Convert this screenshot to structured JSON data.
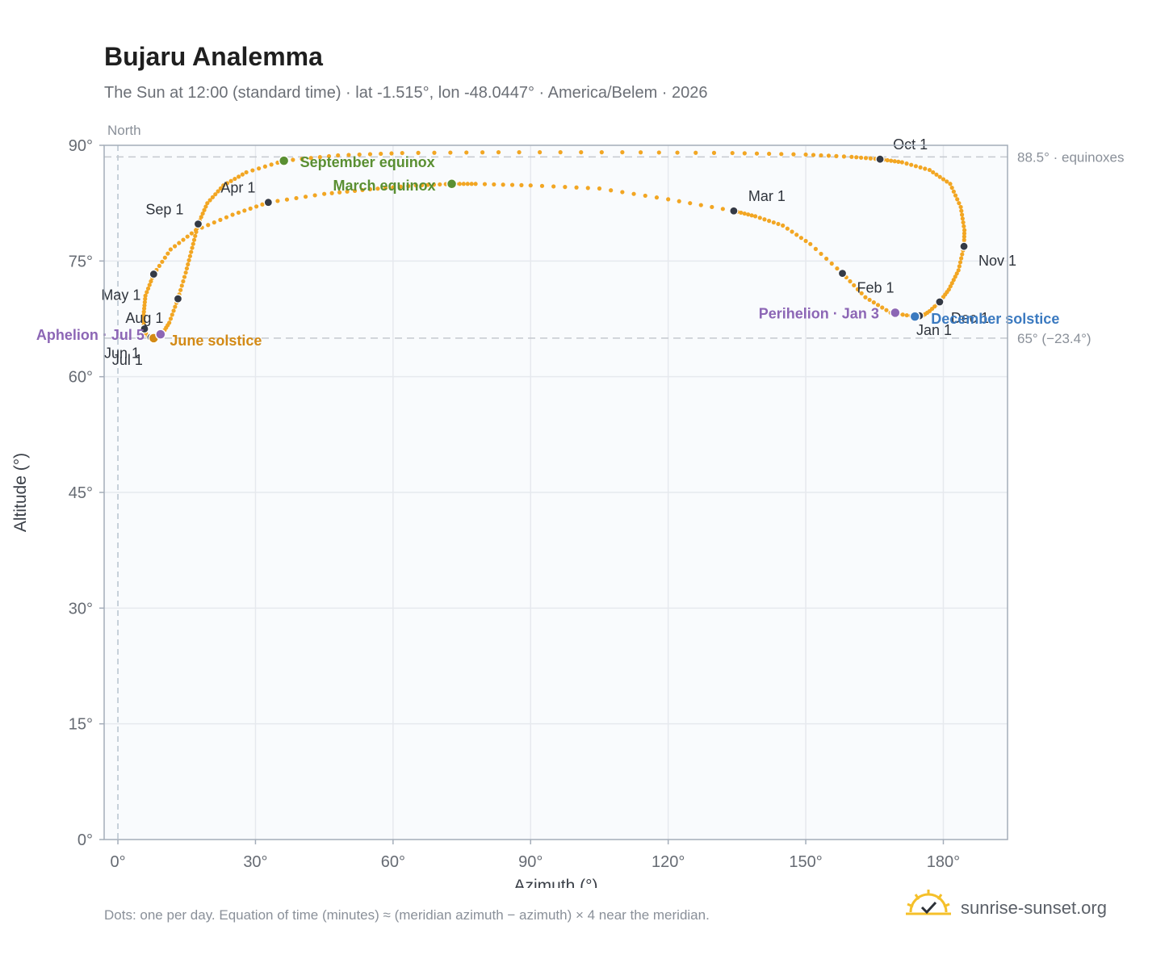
{
  "header": {
    "title": "Bujaru Analemma",
    "subtitle": "The Sun at 12:00 (standard time) · lat -1.515°, lon -48.0447° · America/Belem · 2026"
  },
  "footer": {
    "note": "Dots: one per day. Equation of time (minutes) ≈ (meridian azimuth − azimuth) × 4 near the meridian.",
    "brand": "sunrise-sunset.org",
    "brand_icon": "sun-logo-icon"
  },
  "colors": {
    "path": "#f2a623",
    "month_marker": "#343a46",
    "equinox": "#5a8f32",
    "june_solstice": "#d38a16",
    "december_solstice": "#3b7ac0",
    "aphelion_perihelion": "#8c66b5",
    "plot_background": "#f9fbfd",
    "frame": "#a4adb9",
    "grid": "#e6e9ee",
    "reference_line": "#c5c9cf"
  },
  "chart_data": {
    "type": "scatter",
    "title": "Bujaru Analemma",
    "xlabel": "Azimuth (°)",
    "ylabel": "Altitude (°)",
    "xlim": [
      -3,
      194
    ],
    "ylim": [
      0,
      90
    ],
    "x_ticks": [
      0,
      30,
      60,
      90,
      120,
      150,
      180
    ],
    "x_tick_labels": [
      "0°",
      "30°",
      "60°",
      "90°",
      "120°",
      "150°",
      "180°"
    ],
    "y_ticks": [
      0,
      15,
      30,
      45,
      60,
      75,
      90
    ],
    "y_tick_labels": [
      "0°",
      "15°",
      "30°",
      "45°",
      "60°",
      "75°",
      "90°"
    ],
    "grid": true,
    "north_label": "North",
    "reference_lines": [
      {
        "altitude": 88.5,
        "label": "88.5° · equinoxes"
      },
      {
        "altitude": 65,
        "label": "65° (−23.4°)"
      }
    ],
    "path_points": [
      {
        "az": 173.8,
        "alt": 67.8
      },
      {
        "az": 168.5,
        "alt": 68.3
      },
      {
        "az": 163.0,
        "alt": 70.3
      },
      {
        "az": 158.0,
        "alt": 73.4
      },
      {
        "az": 151.0,
        "alt": 77.2
      },
      {
        "az": 145.0,
        "alt": 79.6
      },
      {
        "az": 139.0,
        "alt": 80.8
      },
      {
        "az": 134.3,
        "alt": 81.5
      },
      {
        "az": 120.0,
        "alt": 83.0
      },
      {
        "az": 105.0,
        "alt": 84.4
      },
      {
        "az": 90.0,
        "alt": 84.8
      },
      {
        "az": 78.0,
        "alt": 85.0
      },
      {
        "az": 72.8,
        "alt": 85.0
      },
      {
        "az": 65.0,
        "alt": 84.8
      },
      {
        "az": 55.0,
        "alt": 84.3
      },
      {
        "az": 45.0,
        "alt": 83.7
      },
      {
        "az": 32.8,
        "alt": 82.6
      },
      {
        "az": 25.0,
        "alt": 81.0
      },
      {
        "az": 17.0,
        "alt": 79.0
      },
      {
        "az": 11.5,
        "alt": 76.5
      },
      {
        "az": 7.8,
        "alt": 73.3
      },
      {
        "az": 6.0,
        "alt": 70.5
      },
      {
        "az": 5.6,
        "alt": 68.0
      },
      {
        "az": 5.7,
        "alt": 66.0
      },
      {
        "az": 6.5,
        "alt": 65.3
      },
      {
        "az": 7.8,
        "alt": 65.0
      },
      {
        "az": 9.5,
        "alt": 65.4
      },
      {
        "az": 11.2,
        "alt": 67.0
      },
      {
        "az": 13.1,
        "alt": 70.1
      },
      {
        "az": 14.8,
        "alt": 73.5
      },
      {
        "az": 16.2,
        "alt": 76.7
      },
      {
        "az": 17.5,
        "alt": 79.8
      },
      {
        "az": 19.5,
        "alt": 82.5
      },
      {
        "az": 23.0,
        "alt": 84.8
      },
      {
        "az": 28.0,
        "alt": 86.5
      },
      {
        "az": 36.2,
        "alt": 88.0
      },
      {
        "az": 48.0,
        "alt": 88.7
      },
      {
        "az": 62.0,
        "alt": 89.0
      },
      {
        "az": 83.0,
        "alt": 89.1
      },
      {
        "az": 110.0,
        "alt": 89.1
      },
      {
        "az": 134.0,
        "alt": 89.0
      },
      {
        "az": 150.0,
        "alt": 88.8
      },
      {
        "az": 160.0,
        "alt": 88.5
      },
      {
        "az": 166.2,
        "alt": 88.2
      },
      {
        "az": 171.0,
        "alt": 87.8
      },
      {
        "az": 177.0,
        "alt": 86.8
      },
      {
        "az": 181.5,
        "alt": 85.0
      },
      {
        "az": 183.8,
        "alt": 82.0
      },
      {
        "az": 184.6,
        "alt": 79.0
      },
      {
        "az": 184.5,
        "alt": 76.9
      },
      {
        "az": 183.3,
        "alt": 73.8
      },
      {
        "az": 181.2,
        "alt": 71.3
      },
      {
        "az": 179.2,
        "alt": 69.7
      },
      {
        "az": 177.0,
        "alt": 68.5
      },
      {
        "az": 175.5,
        "alt": 67.9
      },
      {
        "az": 173.8,
        "alt": 67.8
      }
    ],
    "month_markers": [
      {
        "label": "Jan 1",
        "az": 174.8,
        "alt": 67.9
      },
      {
        "label": "Feb 1",
        "az": 158.0,
        "alt": 73.4
      },
      {
        "label": "Mar 1",
        "az": 134.3,
        "alt": 81.5
      },
      {
        "label": "Apr 1",
        "az": 32.8,
        "alt": 82.6
      },
      {
        "label": "May 1",
        "az": 7.8,
        "alt": 73.3
      },
      {
        "label": "Jun 1",
        "az": 5.8,
        "alt": 66.2
      },
      {
        "label": "Jul 1",
        "az": 7.2,
        "alt": 65.1
      },
      {
        "label": "Aug 1",
        "az": 13.1,
        "alt": 70.1
      },
      {
        "label": "Sep 1",
        "az": 17.5,
        "alt": 79.8
      },
      {
        "label": "Oct 1",
        "az": 166.2,
        "alt": 88.2
      },
      {
        "label": "Nov 1",
        "az": 184.5,
        "alt": 76.9
      },
      {
        "label": "Dec 1",
        "az": 179.2,
        "alt": 69.7
      }
    ],
    "events": [
      {
        "label": "September equinox",
        "az": 36.2,
        "alt": 88.0,
        "kind": "equinox"
      },
      {
        "label": "March equinox",
        "az": 72.8,
        "alt": 85.0,
        "kind": "equinox"
      },
      {
        "label": "June solstice",
        "az": 7.8,
        "alt": 65.0,
        "kind": "june_solstice"
      },
      {
        "label": "December solstice",
        "az": 173.8,
        "alt": 67.8,
        "kind": "december_solstice"
      },
      {
        "label": "Aphelion · Jul 5",
        "az": 9.3,
        "alt": 65.5,
        "kind": "aphelion_perihelion"
      },
      {
        "label": "Perihelion · Jan 3",
        "az": 169.5,
        "alt": 68.3,
        "kind": "aphelion_perihelion"
      }
    ]
  }
}
